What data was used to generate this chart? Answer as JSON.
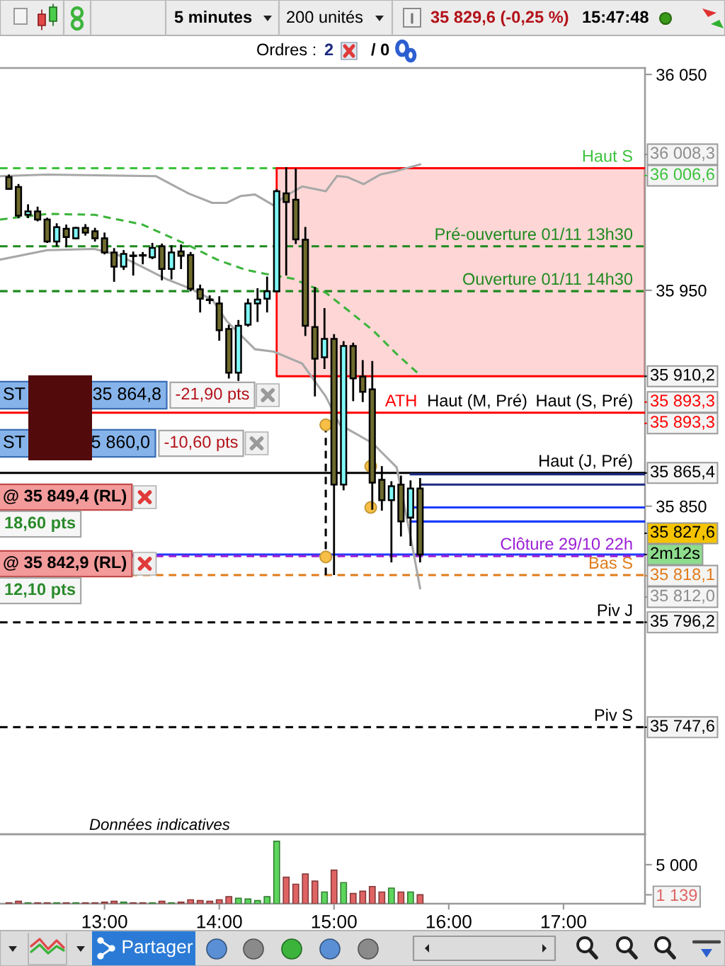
{
  "chart_data": [
    {
      "type": "candlestick",
      "x": [
        12.1667,
        12.25,
        12.3333,
        12.4167,
        12.5,
        12.5833,
        12.6667,
        12.75,
        12.8333,
        12.9167,
        13.0,
        13.0833,
        13.1667,
        13.25,
        13.3333,
        13.4167,
        13.5,
        13.5833,
        13.6667,
        13.75,
        13.8333,
        13.9167,
        14.0,
        14.0833,
        14.1667,
        14.25,
        14.3333,
        14.4167,
        14.5,
        14.5833,
        14.6667,
        14.75,
        14.8333,
        14.9167,
        15.0,
        15.0833,
        15.1667,
        15.25,
        15.3333,
        15.4167,
        15.5,
        15.5833,
        15.6667,
        15.75
      ],
      "ohlc": [
        [
          36002.5,
          36003.2,
          35997.0,
          35997.0
        ],
        [
          35997.9,
          35998.8,
          35983.9,
          35984.6
        ],
        [
          35985.0,
          35989.4,
          35983.9,
          35986.6
        ],
        [
          35986.6,
          35988.3,
          35982.4,
          35982.8
        ],
        [
          35982.8,
          35983.2,
          35972.4,
          35972.6
        ],
        [
          35972.6,
          35980.6,
          35970.8,
          35979.3
        ],
        [
          35978.5,
          35980.0,
          35970.4,
          35974.7
        ],
        [
          35974.1,
          35978.9,
          35974.1,
          35978.9
        ],
        [
          35978.9,
          35980.2,
          35975.8,
          35976.7
        ],
        [
          35977.4,
          35978.5,
          35973.0,
          35974.1
        ],
        [
          35974.1,
          35976.3,
          35967.1,
          35967.5
        ],
        [
          35967.5,
          35969.1,
          35954.4,
          35961.0
        ],
        [
          35961.0,
          35968.2,
          35959.9,
          35966.9
        ],
        [
          35966.0,
          35967.5,
          35957.3,
          35966.0
        ],
        [
          35966.2,
          35967.3,
          35962.5,
          35966.2
        ],
        [
          35965.3,
          35971.5,
          35964.9,
          35969.7
        ],
        [
          35970.4,
          35971.2,
          35955.1,
          35959.9
        ],
        [
          35959.9,
          35970.4,
          35955.5,
          35967.5
        ],
        [
          35968.0,
          35970.8,
          35960.3,
          35966.0
        ],
        [
          35966.4,
          35967.3,
          35950.0,
          35950.7
        ],
        [
          35950.5,
          35952.2,
          35940.2,
          35946.1
        ],
        [
          35945.6,
          35947.2,
          35944.1,
          35945.6
        ],
        [
          35943.9,
          35946.8,
          35927.1,
          35931.5
        ],
        [
          35932.1,
          35933.6,
          35909.6,
          35911.8
        ],
        [
          35911.8,
          35935.8,
          35908.5,
          35933.6
        ],
        [
          35934.1,
          35945.7,
          35933.6,
          35943.9
        ],
        [
          35943.9,
          35950.5,
          35935.8,
          35945.7
        ],
        [
          35946.1,
          35955.9,
          35940.2,
          35949.6
        ],
        [
          35949.6,
          35996.4,
          35949.6,
          35995.9
        ],
        [
          35994.9,
          36006.6,
          35957.3,
          35990.9
        ],
        [
          35992.0,
          36006.0,
          35971.9,
          35973.6
        ],
        [
          35973.4,
          35978.9,
          35929.3,
          35933.6
        ],
        [
          35933.0,
          35951.1,
          35901.3,
          35918.3
        ],
        [
          35919.0,
          35941.3,
          35914.0,
          35927.5
        ],
        [
          35927.5,
          35929.3,
          35818.5,
          35860.0
        ],
        [
          35860.0,
          35926.0,
          35857.8,
          35924.2
        ],
        [
          35924.2,
          35925.3,
          35899.1,
          35909.2
        ],
        [
          35910.0,
          35917.2,
          35898.7,
          35903.0
        ],
        [
          35904.1,
          35916.8,
          35848.8,
          35860.9
        ],
        [
          35862.2,
          35868.1,
          35848.4,
          35852.8
        ],
        [
          35852.8,
          35861.1,
          35824.4,
          35859.3
        ],
        [
          35860.0,
          35863.7,
          35836.4,
          35842.9
        ],
        [
          35844.7,
          35861.5,
          35832.0,
          35858.2
        ],
        [
          35858.2,
          35862.6,
          35824.4,
          35827.6
        ]
      ],
      "colors": [
        "#6e6b2d",
        "#6e6b2d",
        "#80f8f8",
        "#6e6b2d",
        "#6e6b2d",
        "#80f8f8",
        "#6e6b2d",
        "#80f8f8",
        "#6e6b2d",
        "#6e6b2d",
        "#6e6b2d",
        "#6e6b2d",
        "#80f8f8",
        "#000000",
        "#000000",
        "#80f8f8",
        "#6e6b2d",
        "#80f8f8",
        "#6e6b2d",
        "#6e6b2d",
        "#6e6b2d",
        "#000000",
        "#6e6b2d",
        "#6e6b2d",
        "#80f8f8",
        "#80f8f8",
        "#80f8f8",
        "#80f8f8",
        "#80f8f8",
        "#6e6b2d",
        "#6e6b2d",
        "#6e6b2d",
        "#6e6b2d",
        "#80f8f8",
        "#6e6b2d",
        "#80f8f8",
        "#6e6b2d",
        "#6e6b2d",
        "#6e6b2d",
        "#6e6b2d",
        "#80f8f8",
        "#6e6b2d",
        "#80f8f8",
        "#6e6b2d"
      ],
      "xlim": [
        12.089,
        17.71
      ],
      "ylim": [
        35698,
        36053
      ],
      "yticks": [
        {
          "value": 36050,
          "label": "36 050"
        },
        {
          "value": 35950,
          "label": "35 950"
        },
        {
          "value": 35850,
          "label": "35 850"
        }
      ],
      "tick_labels": "y",
      "series": [
        {
          "type": "line",
          "color": "#ff0000",
          "x": [
            14.5,
            17.71
          ],
          "values": [
            36006.6,
            36006.6
          ],
          "lower": [
            35910.2,
            35910.2
          ],
          "upper": [
            36006.6,
            36006.6
          ]
        },
        {
          "type": "line",
          "color": "#a8a8a8",
          "x": [
            12.089,
            12.5,
            13.447,
            13.735,
            13.94,
            14.064,
            14.188,
            14.311,
            14.475,
            14.558,
            14.722,
            14.928,
            15.027,
            15.114,
            15.258,
            15.401,
            15.546,
            15.75
          ],
          "values": [
            36002.9,
            36003.6,
            36002.9,
            35994.8,
            35990.5,
            35990.5,
            35993.7,
            35994.4,
            35989.3,
            35993.1,
            35998.1,
            35995.9,
            36003.0,
            36002.5,
            35999.2,
            36003.6,
            36005.3,
            36008.3
          ]
        },
        {
          "type": "line",
          "color": "#a8a8a8",
          "x": [
            12.089,
            12.5,
            12.912,
            13.117,
            13.323,
            13.53,
            13.735,
            13.94,
            14.064,
            14.311,
            14.475,
            14.722,
            14.928,
            15.052,
            15.336,
            15.546,
            15.669,
            15.75
          ],
          "values": [
            35964.2,
            35968.6,
            35969.2,
            35966.4,
            35961.0,
            35955.4,
            35951.1,
            35945.6,
            35935.8,
            35922.7,
            35921.6,
            35916.1,
            35900.8,
            35887.7,
            35879.2,
            35868.0,
            35835.2,
            35812.0
          ]
        },
        {
          "type": "line",
          "color": "#3cb43c",
          "line_style": "dashed",
          "x": [
            12.089,
            12.5,
            12.912,
            13.323,
            13.735,
            13.982,
            14.229,
            14.394,
            14.641,
            14.928,
            15.135,
            15.34,
            15.546,
            15.75
          ],
          "values": [
            35982.8,
            35985.4,
            35985.0,
            35980.6,
            35970.8,
            35964.2,
            35959.5,
            35957.7,
            35955.4,
            35948.9,
            35940.2,
            35931.4,
            35920.5,
            35910.7
          ]
        },
        {
          "type": "line",
          "color": "#1c2a80",
          "x": [
            15.669,
            17.71
          ],
          "values": [
            35864.8,
            35864.8
          ]
        },
        {
          "type": "line",
          "color": "#1c2a80",
          "x": [
            15.752,
            17.71
          ],
          "values": [
            35860.0,
            35860.0
          ]
        },
        {
          "type": "line",
          "color": "#1a3cff",
          "x": [
            15.669,
            17.71
          ],
          "values": [
            35849.4,
            35849.4
          ]
        },
        {
          "type": "line",
          "color": "#1a3cff",
          "x": [
            15.669,
            17.71
          ],
          "values": [
            35842.9,
            35842.9
          ]
        },
        {
          "type": "line",
          "color": "#000000",
          "line_style": "dashed",
          "x": [
            14.928,
            14.928
          ],
          "values": [
            35887.7,
            35818.1
          ]
        },
        {
          "type": "scatter",
          "color": "#f7bf45",
          "marker": "circle",
          "x": [
            14.928,
            15.32,
            15.32,
            14.928
          ],
          "values": [
            35887.7,
            35868.5,
            35849.4,
            35826.5
          ]
        }
      ],
      "ref_lines": [
        {
          "axis": "y",
          "value": 36006.6,
          "label": "Haut S",
          "color": "#3cc23c",
          "line_style": "dashed"
        },
        {
          "axis": "y",
          "value": 35970.4,
          "label": "Pré-ouverture 01/11 13h30",
          "color": "#1e8a1e",
          "line_style": "dashed"
        },
        {
          "axis": "y",
          "value": 35949.6,
          "label": "Ouverture 01/11 14h30",
          "color": "#1e8a1e",
          "line_style": "dashed"
        },
        {
          "axis": "y",
          "value": 35893.3,
          "label": "ATH",
          "color": "#ff0000"
        },
        {
          "axis": "y",
          "value": 35865.4,
          "label": "Haut (J, Pré)",
          "color": "#000000"
        },
        {
          "axis": "y",
          "value": 35827.6,
          "color": "#1a3cff"
        },
        {
          "axis": "y",
          "value": 35826.9,
          "label": "Clôture 29/10 22h",
          "color": "#9b1fd6",
          "line_style": "dashed"
        },
        {
          "axis": "y",
          "value": 35818.1,
          "label": "Bas S",
          "color": "#e07b1a",
          "line_style": "dashed"
        },
        {
          "axis": "y",
          "value": 35796.2,
          "label": "Piv J",
          "color": "#000000",
          "line_style": "dashed"
        },
        {
          "axis": "y",
          "value": 35747.6,
          "label": "Piv S",
          "color": "#000000",
          "line_style": "dashed"
        }
      ],
      "annotations": [
        "5 minutes",
        "200 unités",
        "35 829,6 (-0,25 %)",
        "15:47:48",
        "Ordres :",
        "2",
        "/ 0",
        "ST",
        "35 864,8",
        "-21,90 pts",
        "ST",
        "5 860,0",
        "-10,60 pts",
        "@ 35 849,4 (RL)",
        "18,60 pts",
        "@ 35 842,9 (RL)",
        "12,10 pts",
        "Données indicatives",
        "Partager",
        "36 008,3",
        "35 812,0",
        {
          "text": "Haut (S, Pré)",
          "x": 17.607,
          "y": 35893.3
        },
        {
          "text": "Haut (M, Pré)",
          "x": 16.685,
          "y": 35893.3
        },
        {
          "text": "36 006,6",
          "x": 17.71,
          "y": 36006.6
        },
        {
          "text": "35 910,2",
          "x": 17.71,
          "y": 35910.2
        },
        {
          "text": "35 893,3",
          "x": 17.71,
          "y": 35893.3
        },
        {
          "text": "35 893,3",
          "x": 17.71,
          "y": 35893.3
        },
        {
          "text": "35 865,4",
          "x": 17.71,
          "y": 35865.4
        },
        {
          "text": "35 827,6",
          "x": 17.71,
          "y": 35827.6
        },
        {
          "text": "2m12s",
          "x": 17.71,
          "y": 35827.6
        },
        {
          "text": "35 818,1",
          "x": 17.71,
          "y": 35818.1
        },
        {
          "text": "35 796,2",
          "x": 17.71,
          "y": 35796.2
        },
        {
          "text": "35 747,6",
          "x": 17.71,
          "y": 35747.6
        }
      ]
    },
    {
      "type": "bar",
      "x": [
        12.1667,
        12.25,
        12.3333,
        12.4167,
        12.5,
        12.5833,
        12.6667,
        12.75,
        12.8333,
        12.9167,
        13.0,
        13.0833,
        13.1667,
        13.25,
        13.3333,
        13.4167,
        13.5,
        13.5833,
        13.6667,
        13.75,
        13.8333,
        13.9167,
        14.0,
        14.0833,
        14.1667,
        14.25,
        14.3333,
        14.4167,
        14.5,
        14.5833,
        14.6667,
        14.75,
        14.8333,
        14.9167,
        15.0,
        15.0833,
        15.1667,
        15.25,
        15.3333,
        15.4167,
        15.5,
        15.5833,
        15.6667,
        15.75
      ],
      "values": [
        100,
        300,
        100,
        100,
        100,
        100,
        100,
        100,
        100,
        100,
        200,
        300,
        200,
        100,
        100,
        100,
        300,
        100,
        200,
        500,
        400,
        300,
        500,
        900,
        700,
        600,
        400,
        900,
        8000,
        3400,
        2500,
        3800,
        2900,
        1500,
        4300,
        2700,
        1300,
        1600,
        2200,
        1500,
        2000,
        1500,
        1500,
        1139
      ],
      "colors": [
        "#e06464",
        "#e06464",
        "#5cd65c",
        "#e06464",
        "#e06464",
        "#5cd65c",
        "#e06464",
        "#5cd65c",
        "#e06464",
        "#e06464",
        "#e06464",
        "#e06464",
        "#5cd65c",
        "#e06464",
        "#e06464",
        "#5cd65c",
        "#e06464",
        "#5cd65c",
        "#e06464",
        "#e06464",
        "#e06464",
        "#e06464",
        "#e06464",
        "#e06464",
        "#5cd65c",
        "#5cd65c",
        "#5cd65c",
        "#5cd65c",
        "#5cd65c",
        "#e06464",
        "#e06464",
        "#e06464",
        "#e06464",
        "#5cd65c",
        "#e06464",
        "#5cd65c",
        "#e06464",
        "#e06464",
        "#e06464",
        "#e06464",
        "#5cd65c",
        "#e06464",
        "#5cd65c",
        "#e06464"
      ],
      "xlim": [
        12.089,
        17.71
      ],
      "ylim": [
        0,
        8900
      ],
      "xticks": [
        {
          "value": 13,
          "label": "13:00"
        },
        {
          "value": 14,
          "label": "14:00"
        },
        {
          "value": 15,
          "label": "15:00"
        },
        {
          "value": 16,
          "label": "16:00"
        },
        {
          "value": 17,
          "label": "17:00"
        }
      ],
      "yticks": [
        {
          "value": 5000,
          "label": "5 000"
        },
        {
          "value": 1139,
          "label": "1 139"
        }
      ]
    }
  ]
}
